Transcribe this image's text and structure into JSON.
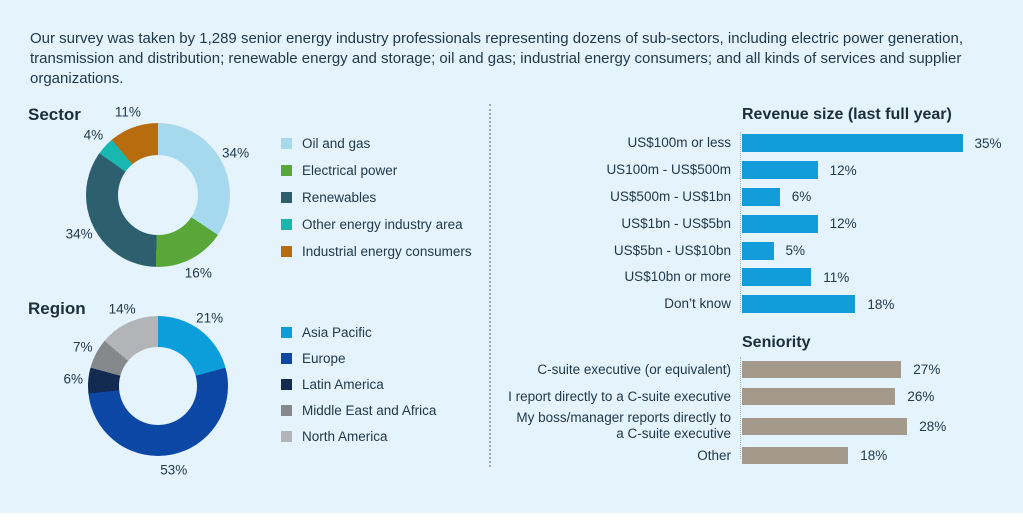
{
  "intro": "Our survey was taken by 1,289 senior energy industry professionals representing dozens of sub-sectors, including electric power generation, transmission and distribution; renewable energy and storage; oil and gas; industrial energy consumers; and all kinds of services and supplier organizations.",
  "colors": {
    "background": "#e4f3fc",
    "text": "#22394a",
    "divider": "#94abb7",
    "revenue_bar": "#129dda",
    "seniority_bar": "#a39a8c"
  },
  "chart_data": [
    {
      "id": "sector",
      "type": "pie",
      "donut": true,
      "title": "Sector",
      "unit": "%",
      "legend_position": "right",
      "labels": [
        "Oil and gas",
        "Electrical power",
        "Renewables",
        "Other energy industry area",
        "Industrial energy consumers"
      ],
      "values": [
        34,
        16,
        34,
        4,
        11
      ],
      "colors": [
        "#a7d9ee",
        "#58a737",
        "#2d5f6e",
        "#18b8b1",
        "#b76c0e"
      ]
    },
    {
      "id": "region",
      "type": "pie",
      "donut": true,
      "title": "Region",
      "unit": "%",
      "legend_position": "right",
      "labels": [
        "Asia Pacific",
        "Europe",
        "Latin America",
        "Middle East and Africa",
        "North America"
      ],
      "values": [
        21,
        53,
        6,
        7,
        14
      ],
      "colors": [
        "#0b9edb",
        "#0c47a6",
        "#132a51",
        "#86898c",
        "#b2b4b7"
      ]
    },
    {
      "id": "revenue",
      "type": "bar",
      "orientation": "horizontal",
      "title": "Revenue size (last full year)",
      "unit": "%",
      "bar_color": "#129dda",
      "categories": [
        "US$100m or less",
        "US100m - US$500m",
        "US$500m - US$1bn",
        "US$1bn - US$5bn",
        "US$5bn - US$10bn",
        "US$10bn or more",
        "Don’t know"
      ],
      "values": [
        35,
        12,
        6,
        12,
        5,
        11,
        18
      ]
    },
    {
      "id": "seniority",
      "type": "bar",
      "orientation": "horizontal",
      "title": "Seniority",
      "unit": "%",
      "bar_color": "#a39a8c",
      "categories": [
        "C-suite executive (or equivalent)",
        "I report directly to a C-suite executive",
        "My boss/manager reports directly to a C-suite executive",
        "Other"
      ],
      "values": [
        27,
        26,
        28,
        18
      ]
    }
  ]
}
